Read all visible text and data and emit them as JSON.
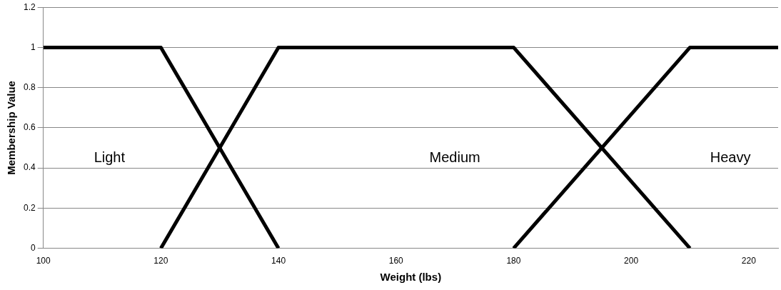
{
  "chart_data": {
    "type": "line",
    "xlabel": "Weight (lbs)",
    "ylabel": "Membership Value",
    "series": [
      {
        "color": "#000000",
        "x": [
          100,
          120,
          140
        ],
        "values": [
          1,
          1,
          0
        ]
      },
      {
        "color": "#000000",
        "x": [
          120,
          140,
          180,
          210
        ],
        "values": [
          0,
          1,
          1,
          0
        ]
      },
      {
        "color": "#000000",
        "x": [
          180,
          210,
          225
        ],
        "values": [
          0,
          1,
          1
        ]
      }
    ],
    "annotations": [
      "Light",
      "Medium",
      "Heavy"
    ],
    "xlim": [
      100,
      225
    ],
    "xticks": [
      100,
      120,
      140,
      160,
      180,
      200,
      220
    ],
    "ylim": [
      0,
      1.2
    ],
    "yticks": [
      0,
      0.2,
      0.4,
      0.6,
      0.8,
      1,
      1.2
    ],
    "grid": "y",
    "legend": false,
    "marker": "none",
    "line_style": "solid"
  }
}
